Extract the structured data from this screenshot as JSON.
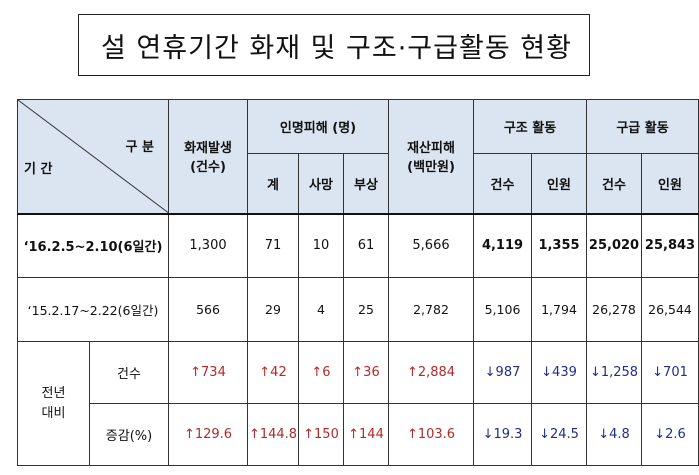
{
  "title": "설 연휴기간 화재 및 구조·구급활동 현황",
  "header": {
    "gubun": "구 분",
    "gigan": "기 간",
    "fire": "화재발생\n(건수)",
    "casualty": "인명피해 (명)",
    "casualty_total": "계",
    "death": "사망",
    "injury": "부상",
    "property": "재산피해\n(백만원)",
    "rescue": "구조 활동",
    "ems": "구급 활동",
    "count": "건수",
    "persons": "인원"
  },
  "rows": [
    {
      "period": "‘16.2.5~2.10(6일간)",
      "fire": "1,300",
      "total": "71",
      "death": "10",
      "injury": "61",
      "property": "5,666",
      "rescue_count": "4,119",
      "rescue_persons": "1,355",
      "ems_count": "25,020",
      "ems_persons": "25,843"
    },
    {
      "period": "‘15.2.17~2.22(6일간)",
      "fire": "566",
      "total": "29",
      "death": "4",
      "injury": "25",
      "property": "2,782",
      "rescue_count": "5,106",
      "rescue_persons": "1,794",
      "ems_count": "26,278",
      "ems_persons": "26,544"
    }
  ],
  "comparison": {
    "label": "전년\n대비",
    "count_label": "건수",
    "rate_label": "증감(%)",
    "count": {
      "fire": "↑734",
      "total": "↑42",
      "death": "↑6",
      "injury": "↑36",
      "property": "↑2,884",
      "rescue_count": "↓987",
      "rescue_persons": "↓439",
      "ems_count": "↓1,258",
      "ems_persons": "↓701"
    },
    "rate": {
      "fire": "↑129.6",
      "total": "↑144.8",
      "death": "↑150",
      "injury": "↑144",
      "property": "↑103.6",
      "rescue_count": "↓19.3",
      "rescue_persons": "↓24.5",
      "ems_count": "↓4.8",
      "ems_persons": "↓2.6"
    }
  },
  "colors": {
    "header_bg": "#dbe5f1",
    "increase": "#b22a2a",
    "decrease": "#1f2e8a"
  }
}
